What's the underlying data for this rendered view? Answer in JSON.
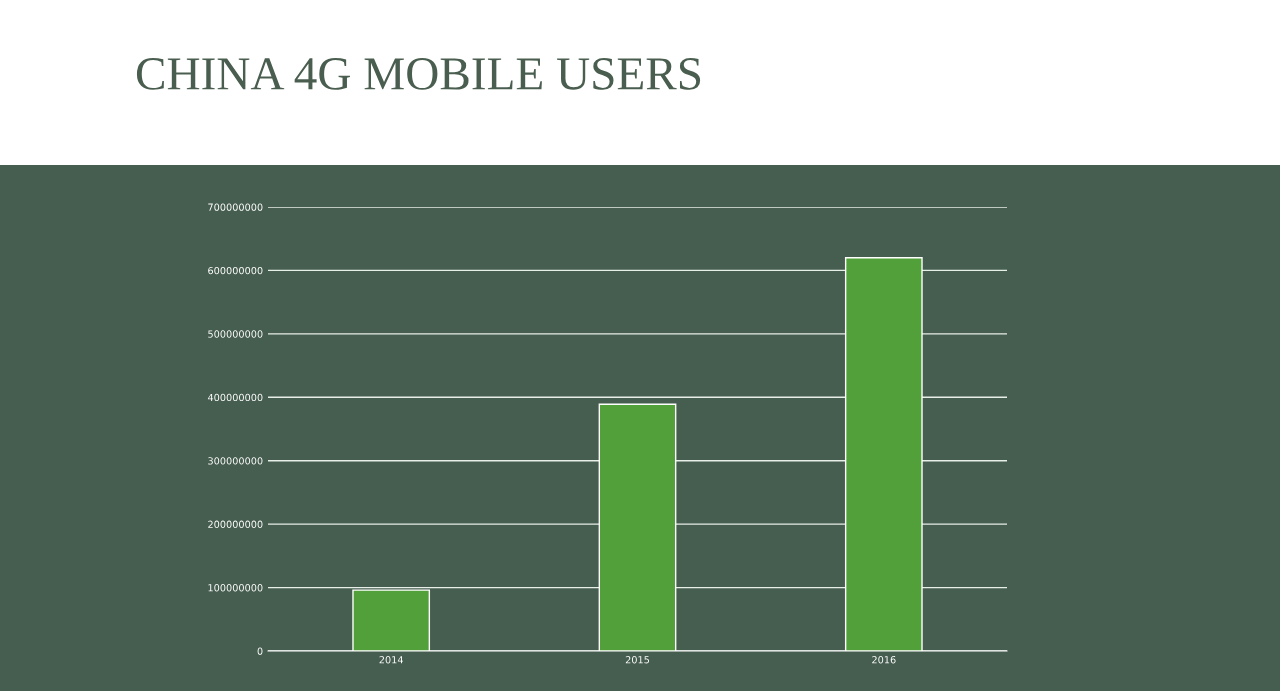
{
  "chart_data": {
    "type": "bar",
    "title": "CHINA 4G MOBILE USERS",
    "categories": [
      "2014",
      "2015",
      "2016"
    ],
    "values": [
      96000000,
      389000000,
      620000000
    ],
    "color": "#52a03a",
    "ylim": [
      0,
      700000000
    ],
    "yticks": [
      0,
      100000000,
      200000000,
      300000000,
      400000000,
      500000000,
      600000000,
      700000000
    ],
    "grid": "y",
    "legend": false
  }
}
